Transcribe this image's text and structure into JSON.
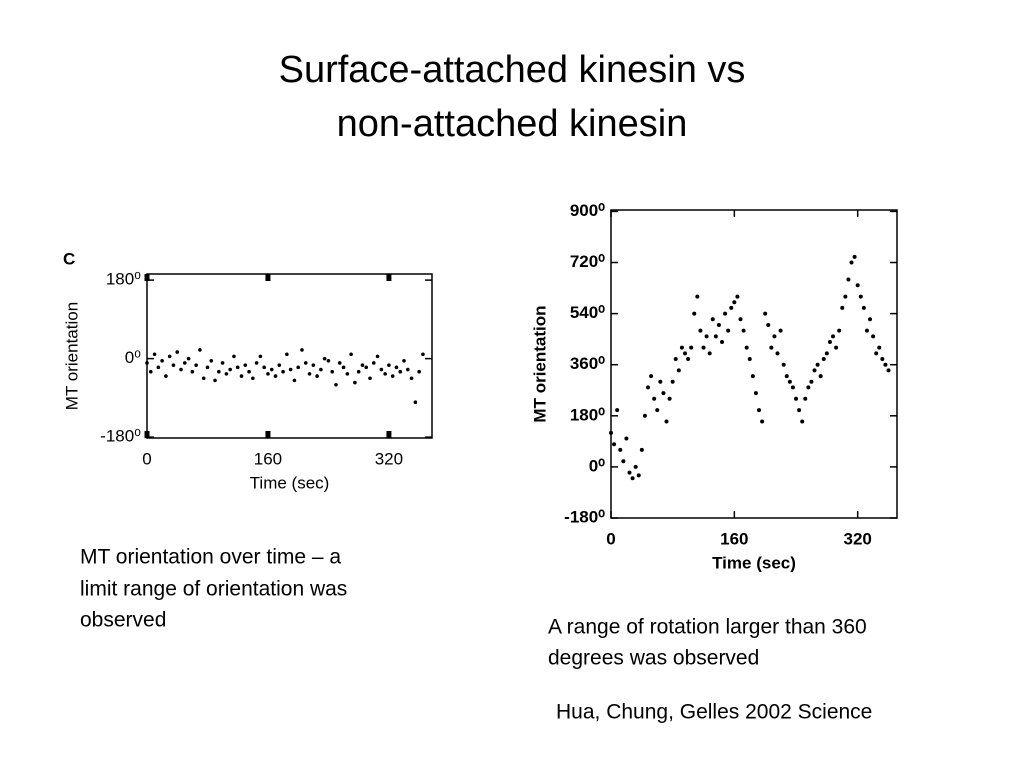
{
  "title": [
    "Surface-attached kinesin vs",
    "non-attached kinesin"
  ],
  "chart_data": [
    {
      "type": "scatter",
      "panel_label": "C",
      "x_label": "Time (sec)",
      "y_label": "MT orientation",
      "color": "#000000",
      "xlim": [
        0,
        377
      ],
      "ylim": [
        -182,
        194
      ],
      "xticks": [
        0,
        160,
        320
      ],
      "yticks": [
        {
          "value": -180,
          "label": "-180⁰"
        },
        {
          "value": 0,
          "label": "0⁰"
        },
        {
          "value": 180,
          "label": "180⁰"
        }
      ],
      "x": [
        0,
        5,
        10,
        15,
        20,
        25,
        30,
        35,
        40,
        45,
        50,
        55,
        60,
        65,
        70,
        75,
        80,
        85,
        90,
        95,
        100,
        105,
        110,
        115,
        120,
        125,
        130,
        135,
        140,
        145,
        150,
        155,
        160,
        165,
        170,
        175,
        180,
        185,
        190,
        195,
        200,
        205,
        210,
        215,
        220,
        225,
        230,
        235,
        240,
        245,
        250,
        255,
        260,
        265,
        270,
        275,
        280,
        285,
        290,
        295,
        300,
        305,
        310,
        315,
        320,
        325,
        330,
        335,
        340,
        345,
        350,
        355,
        360,
        365
      ],
      "values": [
        -10,
        -30,
        10,
        -20,
        -5,
        -40,
        5,
        -15,
        15,
        -25,
        -10,
        0,
        -30,
        -15,
        20,
        -45,
        -20,
        -5,
        -50,
        -30,
        -10,
        -35,
        -25,
        5,
        -20,
        -40,
        -15,
        -30,
        -45,
        -10,
        5,
        -20,
        -35,
        -25,
        -40,
        -15,
        -30,
        10,
        -25,
        -50,
        -20,
        20,
        -10,
        -35,
        -15,
        -40,
        -25,
        0,
        -5,
        -30,
        -60,
        -10,
        -20,
        -35,
        10,
        -55,
        -30,
        -15,
        -20,
        -45,
        -10,
        5,
        -25,
        -35,
        -15,
        -40,
        -20,
        -30,
        -5,
        -25,
        -45,
        -100,
        -30,
        10
      ]
    },
    {
      "type": "scatter",
      "x_label": "Time (sec)",
      "y_label": "MT orientation",
      "color": "#000000",
      "xlim": [
        0,
        371
      ],
      "ylim": [
        -180,
        905
      ],
      "xticks": [
        0,
        160,
        320
      ],
      "yticks": [
        {
          "value": -180,
          "label": "-180⁰"
        },
        {
          "value": 0,
          "label": "0⁰"
        },
        {
          "value": 180,
          "label": "180⁰"
        },
        {
          "value": 360,
          "label": "360⁰"
        },
        {
          "value": 540,
          "label": "540⁰"
        },
        {
          "value": 720,
          "label": "720⁰"
        },
        {
          "value": 900,
          "label": "900⁰"
        }
      ],
      "x": [
        0,
        4,
        8,
        12,
        16,
        20,
        24,
        28,
        32,
        36,
        40,
        44,
        48,
        52,
        56,
        60,
        64,
        68,
        72,
        76,
        80,
        84,
        88,
        92,
        96,
        100,
        104,
        108,
        112,
        116,
        120,
        124,
        128,
        132,
        136,
        140,
        144,
        148,
        152,
        156,
        160,
        164,
        168,
        172,
        176,
        180,
        184,
        188,
        192,
        196,
        200,
        204,
        208,
        212,
        216,
        220,
        224,
        228,
        232,
        236,
        240,
        244,
        248,
        252,
        256,
        260,
        264,
        268,
        272,
        276,
        280,
        284,
        288,
        292,
        296,
        300,
        304,
        308,
        312,
        316,
        320,
        324,
        328,
        332,
        336,
        340,
        344,
        348,
        352,
        356,
        360
      ],
      "values": [
        120,
        80,
        200,
        60,
        20,
        100,
        -20,
        -40,
        0,
        -30,
        60,
        180,
        280,
        320,
        240,
        200,
        300,
        260,
        160,
        240,
        300,
        380,
        340,
        420,
        400,
        380,
        420,
        540,
        600,
        480,
        420,
        460,
        400,
        520,
        460,
        500,
        440,
        540,
        480,
        560,
        580,
        600,
        520,
        480,
        420,
        380,
        320,
        260,
        200,
        160,
        540,
        500,
        420,
        460,
        400,
        480,
        360,
        320,
        300,
        280,
        240,
        200,
        160,
        240,
        280,
        300,
        340,
        360,
        320,
        380,
        400,
        440,
        460,
        420,
        480,
        560,
        600,
        660,
        720,
        740,
        640,
        600,
        560,
        480,
        520,
        460,
        400,
        420,
        380,
        360,
        340
      ]
    }
  ],
  "captions": [
    [
      "MT orientation over time – a",
      "limit range of orientation was",
      "observed"
    ],
    [
      "A range of rotation larger than 360",
      "degrees was observed"
    ]
  ],
  "citation": "Hua, Chung, Gelles 2002 Science"
}
